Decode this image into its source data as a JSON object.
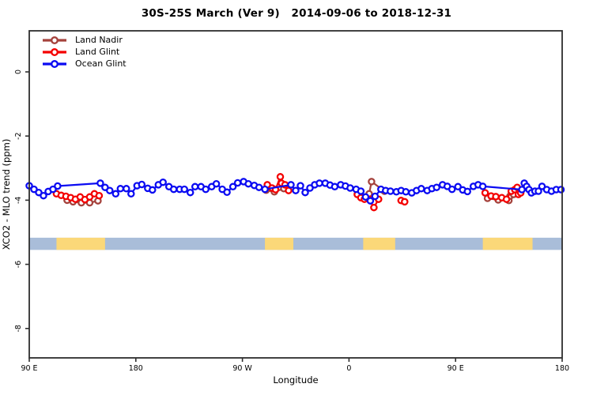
{
  "title": "30S-25S March (Ver 9)   2014-09-06 to 2018-12-31",
  "legend": [
    {
      "label": "Land Nadir",
      "color": "#A5423C"
    },
    {
      "label": "Land Glint",
      "color": "#F40000"
    },
    {
      "label": "Ocean Glint",
      "color": "#0B0BF2"
    }
  ],
  "chart_data": {
    "type": "scatter",
    "title": "30S-25S March (Ver 9)   2014-09-06 to 2018-12-31",
    "xlabel": "Longitude",
    "ylabel": "XCO2 - MLO trend (ppm)",
    "x_axis_note": "axis spans 450 deg starting at 90E going eastward (wraps through 180, 90W, 0, 90E, 180)",
    "xlim": [
      0,
      450
    ],
    "ylim": [
      -8.9,
      1.3
    ],
    "grid": false,
    "legend_position": "top-left",
    "x_ticks": [
      {
        "pos": 0,
        "label": "90 E"
      },
      {
        "pos": 90,
        "label": "180"
      },
      {
        "pos": 180,
        "label": "90 W"
      },
      {
        "pos": 270,
        "label": "0"
      },
      {
        "pos": 360,
        "label": "90 E"
      },
      {
        "pos": 450,
        "label": "180"
      }
    ],
    "y_ticks": [
      {
        "value": 0,
        "label": "0"
      },
      {
        "value": -2,
        "label": "-2"
      },
      {
        "value": -4,
        "label": "-4"
      },
      {
        "value": -6,
        "label": "-6"
      },
      {
        "value": -8,
        "label": "-8"
      }
    ],
    "series": [
      {
        "name": "Land Nadir",
        "color": "#A5423C",
        "marker": "open-circle",
        "clusters": [
          [
            [
              32,
              -4.0
            ],
            [
              37,
              -4.05
            ],
            [
              44,
              -4.08
            ],
            [
              51,
              -4.08
            ],
            [
              58,
              -4.02
            ]
          ],
          [
            [
              200,
              -3.69
            ],
            [
              207,
              -3.74
            ],
            [
              215,
              -3.64
            ]
          ],
          [
            [
              287,
              -3.8
            ],
            [
              289,
              -3.42
            ],
            [
              300,
              -3.72
            ]
          ],
          [
            [
              387,
              -3.94
            ],
            [
              396,
              -3.99
            ],
            [
              405,
              -4.01
            ],
            [
              406,
              -3.87
            ],
            [
              409,
              -3.82
            ]
          ]
        ]
      },
      {
        "name": "Land Glint",
        "color": "#F40000",
        "marker": "open-circle",
        "clusters": [
          [
            [
              23,
              -3.8
            ],
            [
              27,
              -3.85
            ],
            [
              31,
              -3.88
            ],
            [
              35,
              -3.92
            ],
            [
              39,
              -3.97
            ],
            [
              43,
              -3.9
            ],
            [
              47,
              -3.98
            ],
            [
              51,
              -3.9
            ],
            [
              55,
              -3.8
            ],
            [
              59,
              -3.86
            ]
          ],
          [
            [
              201,
              -3.52
            ],
            [
              205,
              -3.62
            ],
            [
              208,
              -3.67
            ],
            [
              212,
              -3.27
            ],
            [
              213,
              -3.47
            ],
            [
              216,
              -3.52
            ],
            [
              219,
              -3.7
            ]
          ],
          [
            [
              277,
              -3.82
            ],
            [
              280,
              -3.92
            ],
            [
              283,
              -3.97
            ],
            [
              287,
              -3.97
            ],
            [
              291,
              -4.23
            ],
            [
              295,
              -3.97
            ]
          ],
          [
            [
              314,
              -4.01
            ],
            [
              317,
              -4.05
            ]
          ],
          [
            [
              385,
              -3.77
            ],
            [
              390,
              -3.87
            ],
            [
              394,
              -3.89
            ],
            [
              399,
              -3.92
            ],
            [
              403,
              -3.97
            ],
            [
              407,
              -3.72
            ],
            [
              410,
              -3.67
            ],
            [
              412,
              -3.6
            ],
            [
              413,
              -3.82
            ],
            [
              415,
              -3.77
            ]
          ]
        ]
      },
      {
        "name": "Ocean Glint",
        "color": "#0B0BF2",
        "marker": "open-circle",
        "clusters": [
          [
            [
              0,
              -3.55
            ],
            [
              4,
              -3.66
            ],
            [
              8,
              -3.76
            ],
            [
              12,
              -3.86
            ],
            [
              16,
              -3.73
            ],
            [
              20,
              -3.66
            ],
            [
              24,
              -3.56
            ],
            [
              60,
              -3.47
            ],
            [
              64,
              -3.6
            ],
            [
              68,
              -3.7
            ],
            [
              73,
              -3.8
            ],
            [
              77,
              -3.64
            ],
            [
              82,
              -3.64
            ],
            [
              86,
              -3.8
            ],
            [
              91,
              -3.55
            ],
            [
              95,
              -3.51
            ],
            [
              100,
              -3.63
            ],
            [
              104,
              -3.68
            ],
            [
              109,
              -3.52
            ],
            [
              113,
              -3.44
            ],
            [
              118,
              -3.58
            ],
            [
              122,
              -3.66
            ],
            [
              127,
              -3.66
            ],
            [
              131,
              -3.66
            ],
            [
              136,
              -3.76
            ],
            [
              140,
              -3.58
            ],
            [
              145,
              -3.58
            ],
            [
              149,
              -3.66
            ],
            [
              154,
              -3.58
            ],
            [
              158,
              -3.49
            ],
            [
              163,
              -3.66
            ],
            [
              167,
              -3.75
            ],
            [
              172,
              -3.58
            ],
            [
              176,
              -3.46
            ],
            [
              181,
              -3.42
            ],
            [
              185,
              -3.49
            ],
            [
              190,
              -3.54
            ],
            [
              194,
              -3.6
            ],
            [
              199,
              -3.66
            ],
            [
              221,
              -3.52
            ],
            [
              225,
              -3.7
            ],
            [
              229,
              -3.55
            ],
            [
              233,
              -3.76
            ],
            [
              237,
              -3.62
            ],
            [
              241,
              -3.52
            ],
            [
              245,
              -3.47
            ],
            [
              250,
              -3.47
            ],
            [
              254,
              -3.53
            ],
            [
              258,
              -3.58
            ],
            [
              263,
              -3.52
            ],
            [
              267,
              -3.56
            ],
            [
              271,
              -3.62
            ],
            [
              276,
              -3.66
            ],
            [
              280,
              -3.72
            ],
            [
              284,
              -3.9
            ],
            [
              288,
              -4.02
            ],
            [
              292,
              -3.88
            ],
            [
              297,
              -3.66
            ],
            [
              301,
              -3.7
            ],
            [
              305,
              -3.72
            ],
            [
              310,
              -3.74
            ],
            [
              314,
              -3.7
            ],
            [
              318,
              -3.74
            ],
            [
              323,
              -3.77
            ],
            [
              327,
              -3.7
            ],
            [
              331,
              -3.64
            ],
            [
              336,
              -3.7
            ],
            [
              340,
              -3.64
            ],
            [
              344,
              -3.6
            ],
            [
              349,
              -3.52
            ],
            [
              353,
              -3.57
            ],
            [
              357,
              -3.66
            ],
            [
              362,
              -3.58
            ],
            [
              366,
              -3.68
            ],
            [
              370,
              -3.73
            ],
            [
              375,
              -3.57
            ],
            [
              379,
              -3.52
            ],
            [
              383,
              -3.57
            ],
            [
              416,
              -3.67
            ],
            [
              418,
              -3.47
            ],
            [
              420,
              -3.57
            ],
            [
              422,
              -3.67
            ],
            [
              424,
              -3.77
            ],
            [
              427,
              -3.72
            ],
            [
              430,
              -3.72
            ],
            [
              433,
              -3.57
            ],
            [
              437,
              -3.67
            ],
            [
              441,
              -3.72
            ],
            [
              445,
              -3.67
            ],
            [
              449,
              -3.67
            ]
          ]
        ]
      }
    ],
    "surface_band": {
      "description": "land/ocean indicator strip",
      "y_top": -5.17,
      "y_bottom": -5.55,
      "ocean_color": "#A9BDD9",
      "land_color": "#FBD879",
      "land_segments": [
        [
          23,
          64
        ],
        [
          199,
          223
        ],
        [
          282,
          309
        ],
        [
          383,
          425
        ]
      ]
    }
  }
}
